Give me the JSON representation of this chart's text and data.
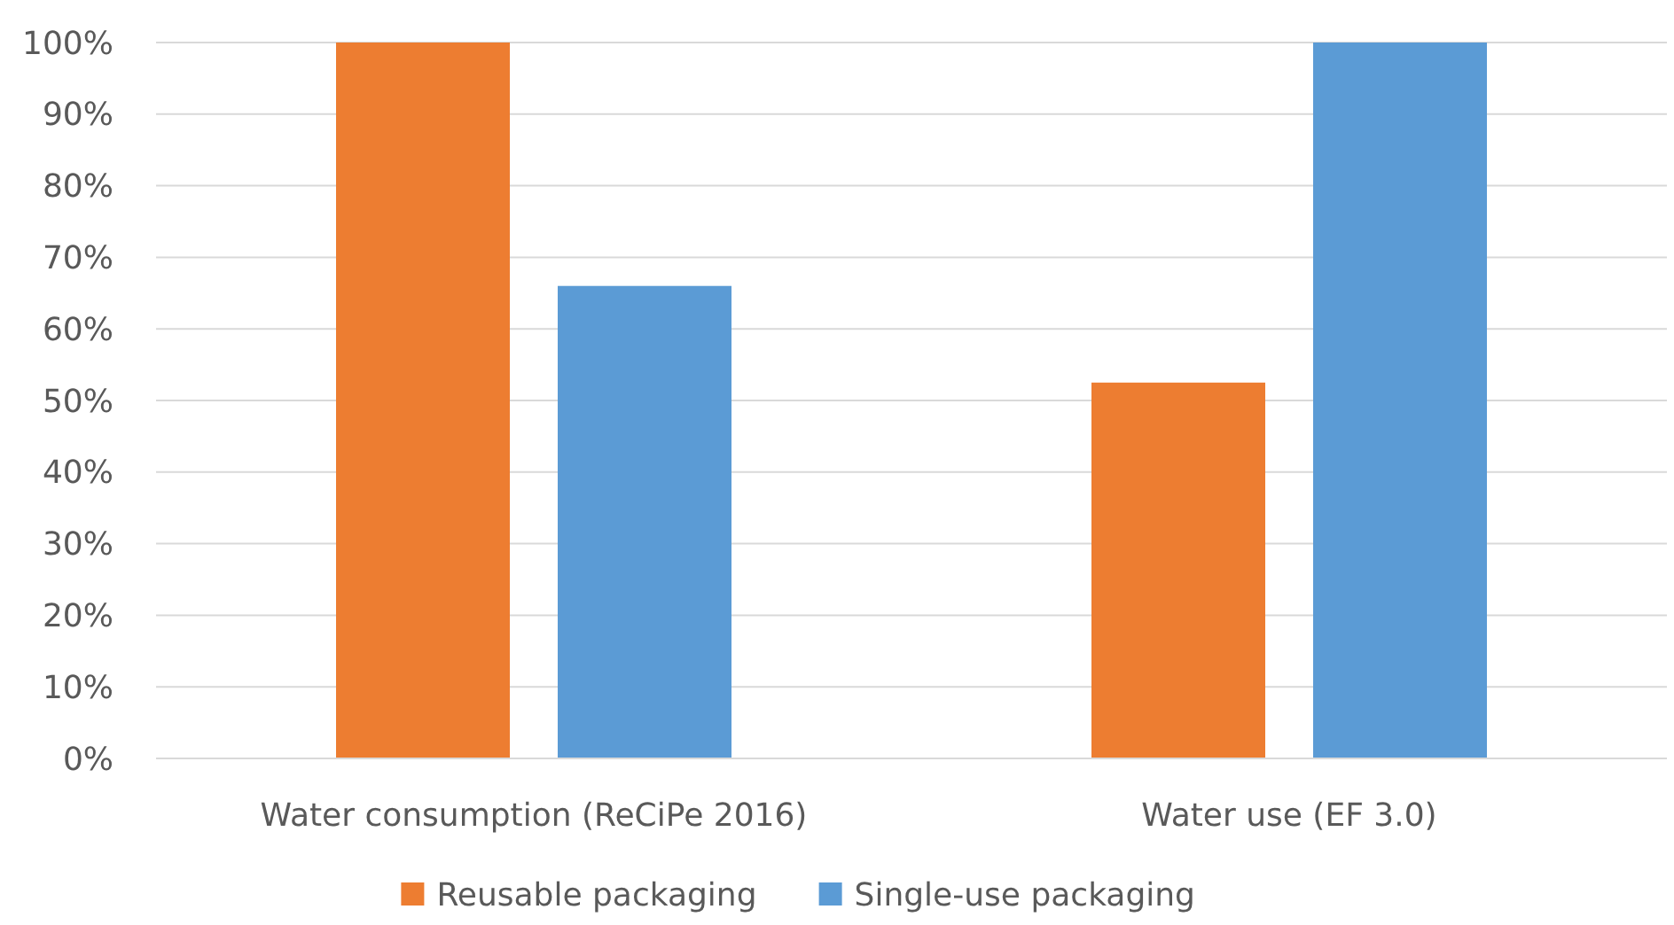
{
  "chart_data": {
    "type": "bar",
    "categories": [
      "Water consumption (ReCiPe 2016)",
      "Water use (EF 3.0)"
    ],
    "series": [
      {
        "name": "Reusable packaging",
        "color": "#ed7d31",
        "values": [
          100,
          52.5
        ]
      },
      {
        "name": "Single-use packaging",
        "color": "#5b9bd5",
        "values": [
          66,
          100
        ]
      }
    ],
    "ylim": [
      0,
      100
    ],
    "yticks": [
      {
        "value": 0,
        "label": "0%"
      },
      {
        "value": 10,
        "label": "10%"
      },
      {
        "value": 20,
        "label": "20%"
      },
      {
        "value": 30,
        "label": "30%"
      },
      {
        "value": 40,
        "label": "40%"
      },
      {
        "value": 50,
        "label": "50%"
      },
      {
        "value": 60,
        "label": "60%"
      },
      {
        "value": 70,
        "label": "70%"
      },
      {
        "value": 80,
        "label": "80%"
      },
      {
        "value": 90,
        "label": "90%"
      },
      {
        "value": 100,
        "label": "100%"
      }
    ],
    "grid": "y",
    "legend": "bottom"
  }
}
